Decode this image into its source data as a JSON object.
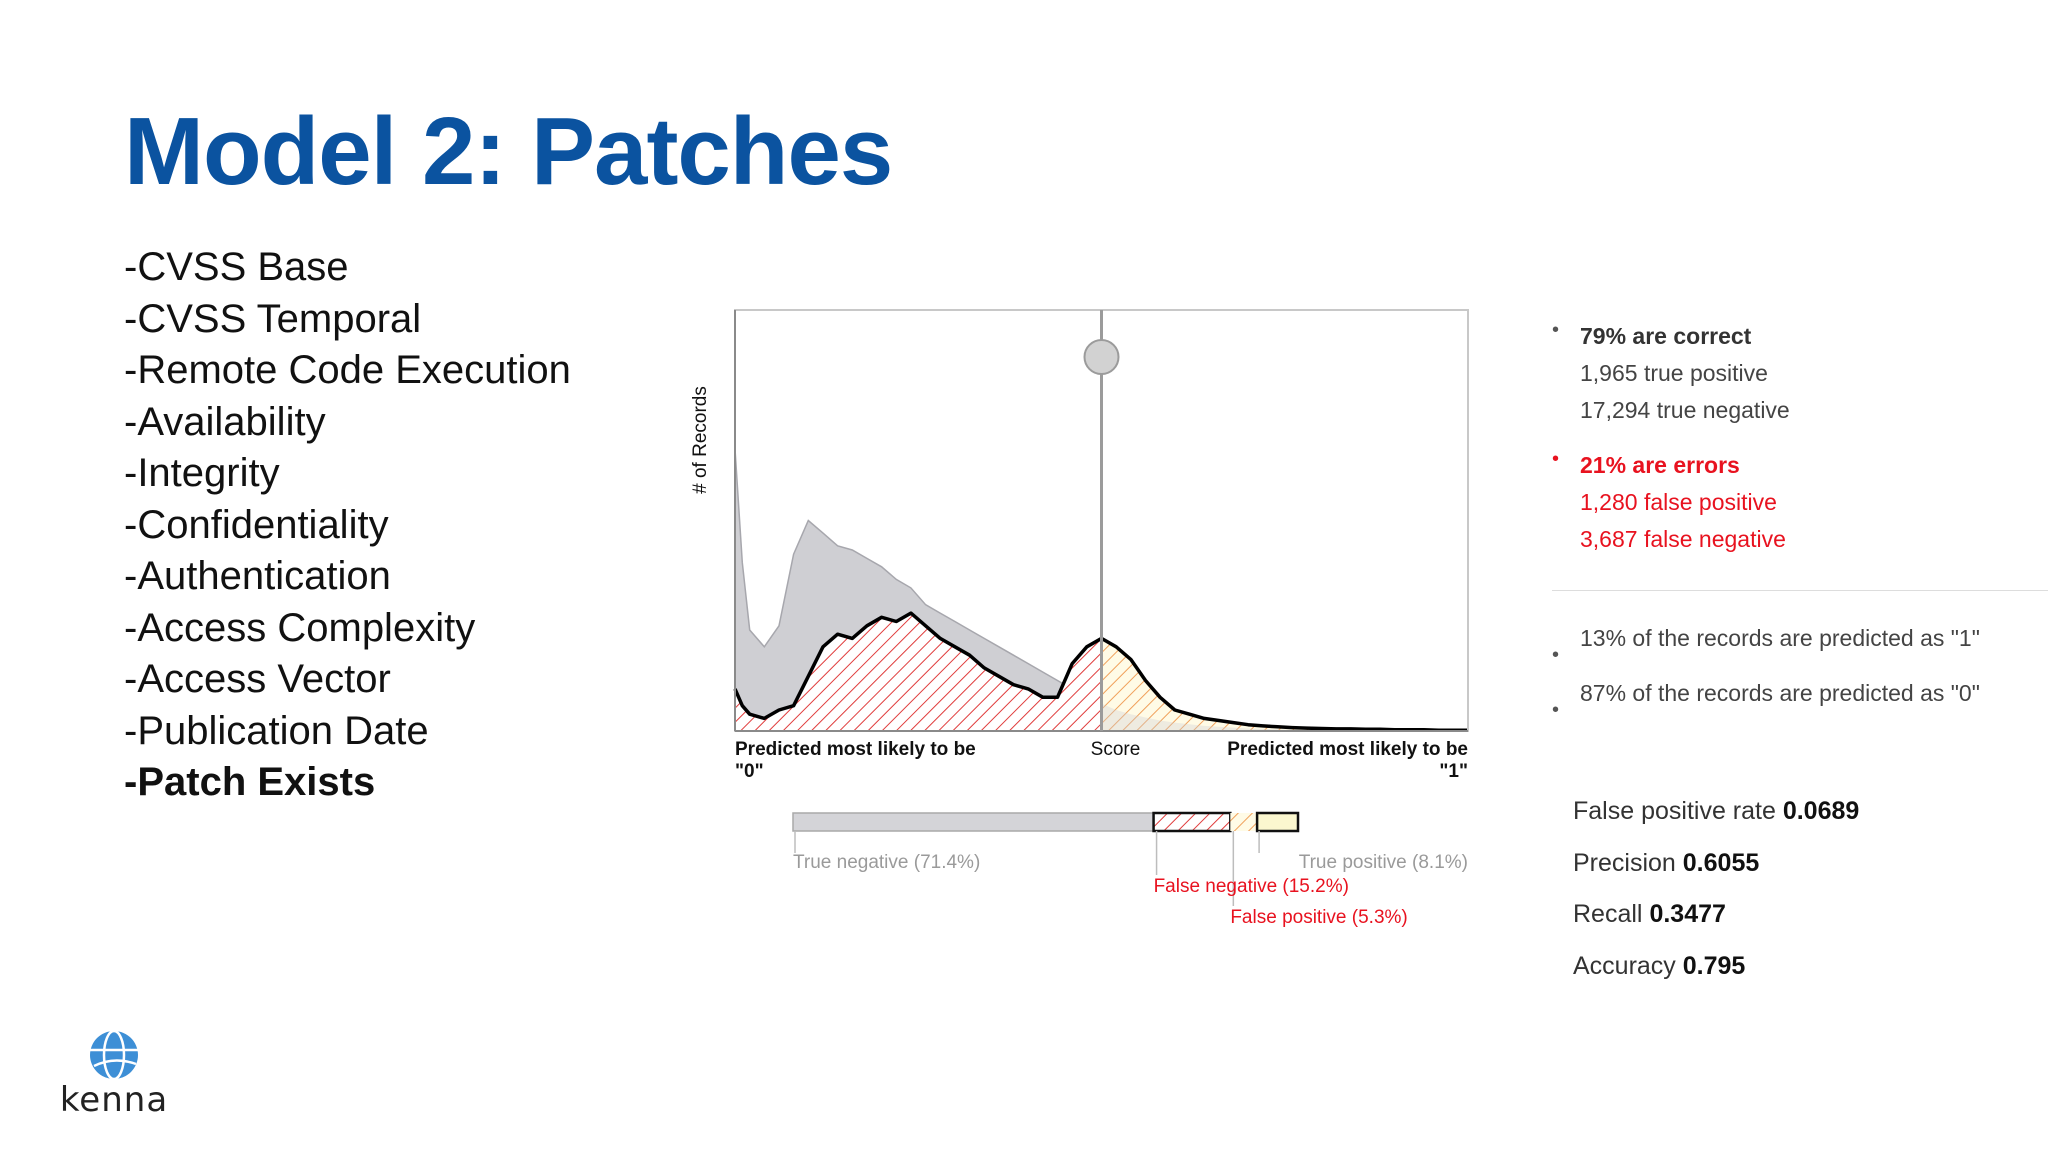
{
  "slide": {
    "title": "Model 2: Patches",
    "features": [
      {
        "label": "-CVSS Base",
        "bold": false
      },
      {
        "label": "-CVSS Temporal",
        "bold": false
      },
      {
        "label": "-Remote Code Execution",
        "bold": false
      },
      {
        "label": "-Availability",
        "bold": false
      },
      {
        "label": "-Integrity",
        "bold": false
      },
      {
        "label": "-Confidentiality",
        "bold": false
      },
      {
        "label": "-Authentication",
        "bold": false
      },
      {
        "label": "-Access Complexity",
        "bold": false
      },
      {
        "label": "-Access Vector",
        "bold": false
      },
      {
        "label": "-Publication Date",
        "bold": false
      },
      {
        "label": "-Patch Exists",
        "bold": true
      }
    ],
    "logo_text": "kenna"
  },
  "chart_data": {
    "type": "area",
    "ylabel": "# of Records",
    "xlabel": "Score",
    "x_left_label_line1": "Predicted most likely to be",
    "x_left_label_line2": "\"0\"",
    "x_right_label_line1": "Predicted most likely to be",
    "x_right_label_line2": "\"1\"",
    "xlim": [
      0,
      1
    ],
    "ylim": [
      0,
      1
    ],
    "threshold": 0.5,
    "grid": false,
    "legend": "none",
    "x": [
      0.0,
      0.01,
      0.02,
      0.04,
      0.06,
      0.08,
      0.1,
      0.12,
      0.14,
      0.16,
      0.18,
      0.2,
      0.22,
      0.24,
      0.26,
      0.28,
      0.3,
      0.32,
      0.34,
      0.36,
      0.38,
      0.4,
      0.42,
      0.44,
      0.46,
      0.48,
      0.5,
      0.52,
      0.54,
      0.56,
      0.58,
      0.6,
      0.62,
      0.64,
      0.66,
      0.68,
      0.7,
      0.72,
      0.74,
      0.76,
      0.78,
      0.8,
      0.82,
      0.84,
      0.86,
      0.88,
      0.9,
      0.92,
      0.94,
      0.96,
      0.98,
      1.0
    ],
    "series": [
      {
        "name": "",
        "role": "negatives",
        "color": "#cfcfd3",
        "values": [
          0.67,
          0.4,
          0.24,
          0.2,
          0.25,
          0.42,
          0.5,
          0.47,
          0.44,
          0.43,
          0.41,
          0.39,
          0.36,
          0.34,
          0.3,
          0.28,
          0.26,
          0.24,
          0.22,
          0.2,
          0.18,
          0.16,
          0.14,
          0.12,
          0.1,
          0.08,
          0.065,
          0.05,
          0.04,
          0.032,
          0.025,
          0.02,
          0.016,
          0.012,
          0.01,
          0.008,
          0.006,
          0.005,
          0.004,
          0.003,
          0.002,
          0.002,
          0.001,
          0.001,
          0.001,
          0.001,
          0.0,
          0.0,
          0.0,
          0.0,
          0.0,
          0.0
        ]
      },
      {
        "name": "",
        "role": "positives",
        "color": "#000000",
        "values": [
          0.1,
          0.06,
          0.04,
          0.03,
          0.05,
          0.06,
          0.13,
          0.2,
          0.23,
          0.22,
          0.25,
          0.27,
          0.26,
          0.28,
          0.25,
          0.22,
          0.2,
          0.18,
          0.15,
          0.13,
          0.11,
          0.1,
          0.08,
          0.08,
          0.16,
          0.2,
          0.22,
          0.2,
          0.17,
          0.12,
          0.08,
          0.05,
          0.04,
          0.03,
          0.025,
          0.02,
          0.015,
          0.012,
          0.01,
          0.008,
          0.007,
          0.006,
          0.005,
          0.005,
          0.004,
          0.004,
          0.003,
          0.003,
          0.003,
          0.002,
          0.002,
          0.002
        ]
      }
    ],
    "confusion_bar": {
      "segments": [
        {
          "key": "tn",
          "label": "True negative (71.4%)",
          "value": 71.4,
          "fill": "#d4d4d8",
          "label_color": "#9a9a9a"
        },
        {
          "key": "fn",
          "label": "False negative (15.2%)",
          "value": 15.2,
          "fill": "#e05a5a",
          "label_color": "#e8121f"
        },
        {
          "key": "fp",
          "label": "False positive (5.3%)",
          "value": 5.3,
          "fill": "#f4c9a6",
          "label_color": "#e8121f"
        },
        {
          "key": "tp",
          "label": "True positive (8.1%)",
          "value": 8.1,
          "fill": "#fbf7cf",
          "label_color": "#9a9a9a"
        }
      ]
    }
  },
  "summary": {
    "correct": {
      "head": "79% are correct",
      "lines": [
        "1,965 true positive",
        "17,294 true negative"
      ]
    },
    "errors": {
      "head": "21% are errors",
      "lines": [
        "1,280 false positive",
        "3,687 false negative"
      ]
    },
    "predicted_1": "13% of the records are predicted as \"1\"",
    "predicted_0": "87% of the records are predicted as \"0\""
  },
  "metrics": [
    {
      "label": "False positive rate",
      "value": "0.0689"
    },
    {
      "label": "Precision",
      "value": "0.6055"
    },
    {
      "label": "Recall",
      "value": "0.3477"
    },
    {
      "label": "Accuracy",
      "value": "0.795"
    }
  ],
  "colors": {
    "title": "#0b53a0",
    "error_red": "#e8121f",
    "negatives_fill": "#cfcfd3",
    "hatch_red": "#e03c3c",
    "hatch_orange": "#f0a05a"
  }
}
